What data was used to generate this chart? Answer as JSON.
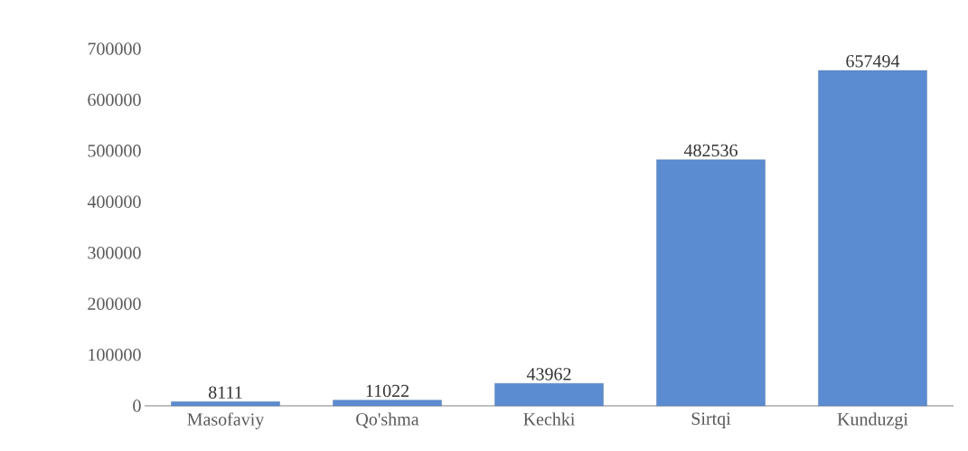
{
  "chart_data": {
    "type": "bar",
    "categories": [
      "Masofaviy",
      "Qo'shma",
      "Kechki",
      "Sirtqi",
      "Kunduzgi"
    ],
    "values": [
      8111,
      11022,
      43962,
      482536,
      657494
    ],
    "color": "#5b8bd0",
    "ylim": [
      0,
      700000
    ],
    "yticks": [
      0,
      100000,
      200000,
      300000,
      400000,
      500000,
      600000,
      700000
    ],
    "data_labels": true
  }
}
